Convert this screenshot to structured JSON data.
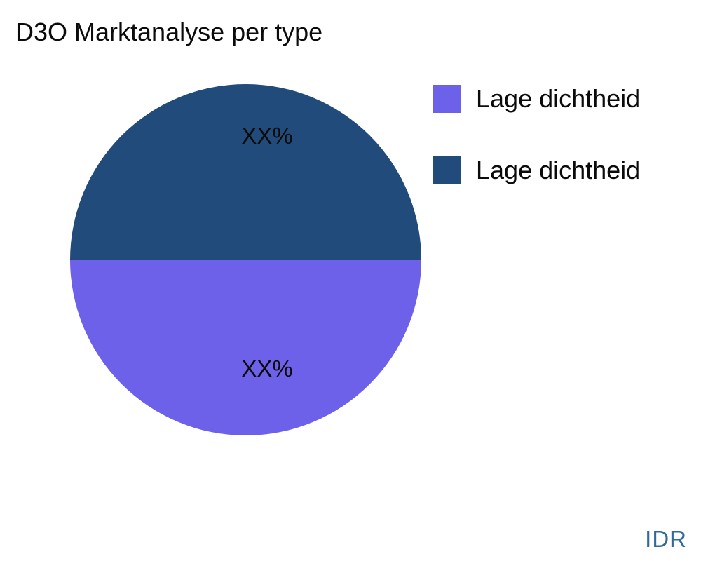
{
  "chart_data": {
    "type": "pie",
    "title": "D3O Marktanalyse per type",
    "legend_position": "right",
    "slices": [
      {
        "label": "Lage dichtheid",
        "value": 50,
        "value_label": "XX%",
        "color": "#6E61E9",
        "position": "bottom-half"
      },
      {
        "label": "Lage dichtheid",
        "value": 50,
        "value_label": "XX%",
        "color": "#214B7A",
        "position": "top-half"
      }
    ],
    "legend": {
      "items": [
        {
          "label": "Lage dichtheid",
          "color": "#6E61E9"
        },
        {
          "label": "Lage dichtheid",
          "color": "#214B7A"
        }
      ]
    }
  },
  "footer": {
    "currency_label": "IDR",
    "color": "#33689B"
  }
}
